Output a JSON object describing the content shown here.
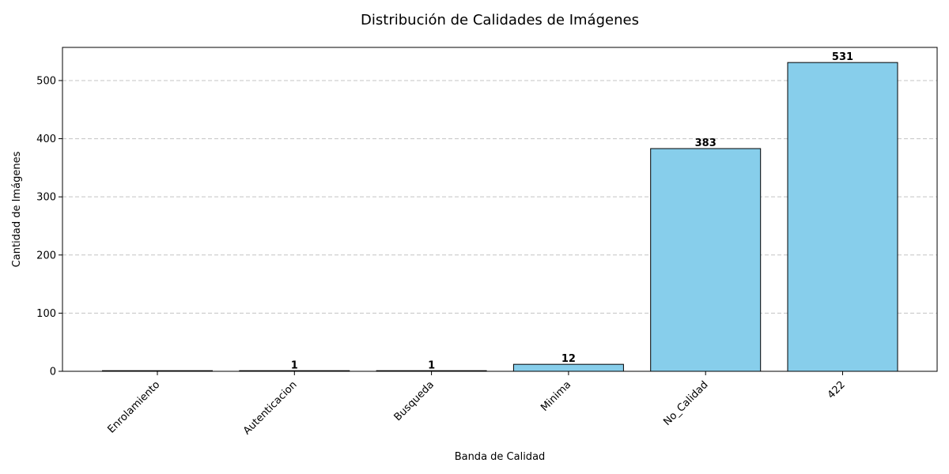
{
  "chart_data": {
    "type": "bar",
    "title": "Distribución de Calidades de Imágenes",
    "xlabel": "Banda de Calidad",
    "ylabel": "Cantidad de Imágenes",
    "categories": [
      "Enrolamiento",
      "Autenticacion",
      "Busqueda",
      "Minima",
      "No_Calidad",
      "422"
    ],
    "values": [
      0,
      1,
      1,
      12,
      383,
      531
    ],
    "data_labels": [
      "",
      "1",
      "1",
      "12",
      "383",
      "531"
    ],
    "ylim": [
      0,
      557
    ],
    "yticks": [
      0,
      100,
      200,
      300,
      400,
      500
    ],
    "grid": "y-dashed",
    "bar_color": "#87ceeb",
    "bar_edge_color": "#000000",
    "xtick_rotation": "45"
  }
}
